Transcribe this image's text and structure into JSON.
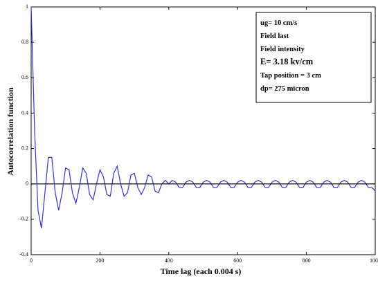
{
  "chart_data": {
    "type": "line",
    "xlabel": "Time lag (each 0.004 s)",
    "ylabel": "Autocorrelation function",
    "annotation": [
      "ug= 10 cm/s",
      "Field last",
      "Field intensity",
      "E= 3.18 kv/cm",
      "Tap position = 3 cm",
      "dp= 275 micron"
    ],
    "x": [
      0,
      10,
      20,
      30,
      40,
      50,
      60,
      70,
      80,
      90,
      100,
      110,
      120,
      130,
      140,
      150,
      160,
      170,
      180,
      190,
      200,
      210,
      220,
      230,
      240,
      250,
      260,
      270,
      280,
      290,
      300,
      310,
      320,
      330,
      340,
      350,
      360,
      370,
      380,
      390,
      400,
      410,
      420,
      430,
      440,
      450,
      460,
      470,
      480,
      490,
      500,
      510,
      520,
      530,
      540,
      550,
      560,
      570,
      580,
      590,
      600,
      610,
      620,
      630,
      640,
      650,
      660,
      670,
      680,
      690,
      700,
      710,
      720,
      730,
      740,
      750,
      760,
      770,
      780,
      790,
      800,
      810,
      820,
      830,
      840,
      850,
      860,
      870,
      880,
      890,
      900,
      910,
      920,
      930,
      940,
      950,
      960,
      970,
      980,
      990,
      1000
    ],
    "series": [
      {
        "name": "Autocorrelation",
        "color": "#3333cc",
        "values": [
          1.0,
          0.3,
          -0.15,
          -0.25,
          -0.05,
          0.15,
          0.15,
          -0.05,
          -0.15,
          -0.05,
          0.09,
          0.08,
          -0.05,
          -0.11,
          -0.02,
          0.09,
          0.06,
          -0.06,
          -0.09,
          0.0,
          0.08,
          0.04,
          -0.06,
          -0.07,
          0.06,
          0.1,
          0.0,
          -0.07,
          -0.05,
          0.05,
          0.06,
          -0.02,
          -0.06,
          -0.02,
          0.05,
          0.04,
          -0.04,
          -0.05,
          0.0,
          0.02,
          0.0,
          0.02,
          0.01,
          -0.02,
          -0.02,
          0.01,
          0.02,
          0.01,
          -0.02,
          -0.02,
          0.01,
          0.02,
          0.01,
          -0.02,
          -0.02,
          0.01,
          0.02,
          0.01,
          -0.02,
          -0.02,
          0.01,
          0.02,
          0.01,
          -0.02,
          -0.02,
          0.01,
          0.02,
          0.01,
          -0.02,
          -0.02,
          0.01,
          0.02,
          0.01,
          -0.02,
          -0.02,
          0.01,
          0.02,
          0.01,
          -0.02,
          -0.02,
          0.01,
          0.02,
          0.01,
          -0.02,
          -0.02,
          0.01,
          0.02,
          0.01,
          -0.02,
          -0.02,
          0.01,
          0.02,
          0.01,
          -0.02,
          -0.02,
          0.01,
          0.02,
          0.01,
          -0.02,
          -0.02,
          -0.04
        ]
      }
    ],
    "xlim": [
      0,
      1000
    ],
    "xticks": [
      0,
      200,
      400,
      600,
      800,
      1000
    ],
    "ylim": [
      -0.4,
      1
    ],
    "yticks": [
      -0.4,
      -0.2,
      0,
      0.2,
      0.4,
      0.6,
      0.8,
      1
    ],
    "zero_line": true
  }
}
